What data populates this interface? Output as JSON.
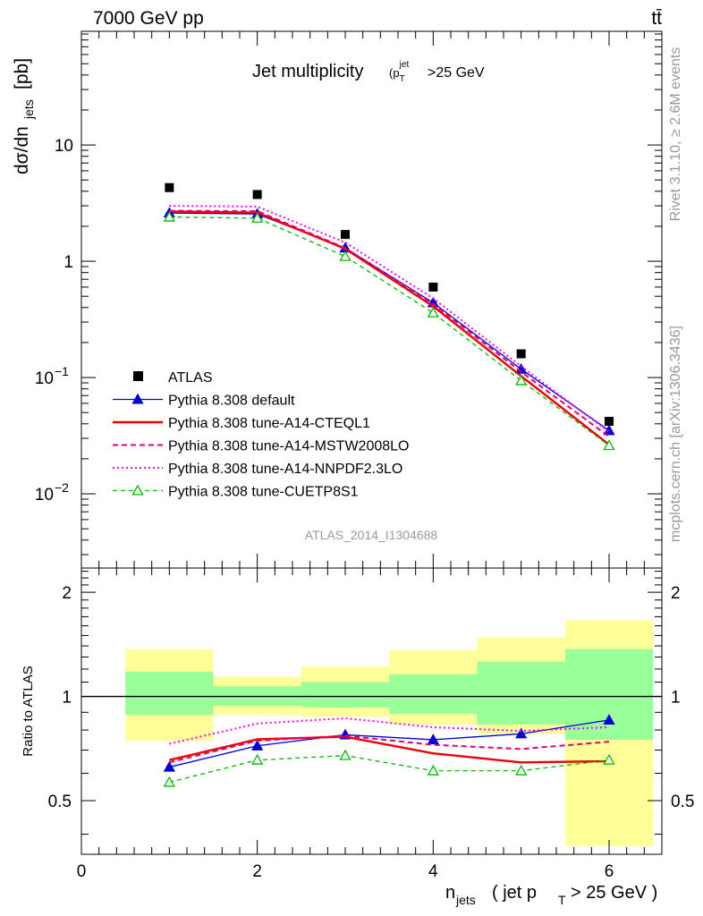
{
  "header": {
    "energy": "7000 GeV pp",
    "process": "tt̄",
    "rivet": "Rivet 3.1.10, ≥ 2.6M events",
    "mcplots": "mcplots.cern.ch [arXiv:1306.3436]",
    "analysis": "ATLAS_2014_I1304688"
  },
  "colors": {
    "atlas": "#000000",
    "default": "#0000dd",
    "cteql1": "#ee0000",
    "mstw": "#e5006e",
    "nnpdf": "#ff00ff",
    "cuetp8s1": "#00bb00",
    "band_inner": "#99ff99",
    "band_outer": "#ffff99"
  },
  "chart_data": {
    "type": "line",
    "title": "Jet multiplicity",
    "title_cut": ">25 GeV",
    "ylabel_main": "dσ/dn",
    "ylabel_main_sub": "jets",
    "ylabel_main_unit": "[pb]",
    "ylabel_ratio": "Ratio to ATLAS",
    "xlabel": "n",
    "xlabel_sub": "jets",
    "xlabel_mid": "( jet p",
    "xlabel_mid_sub": "T",
    "xlabel_end": "> 25 GeV )",
    "xlim": [
      0,
      6.6
    ],
    "ylim_main": [
      0.0023,
      95
    ],
    "yscale_main": "log",
    "ylim_ratio": [
      0.35,
      2.35
    ],
    "yscale_ratio": "log",
    "x_ticks": [
      "0",
      "2",
      "4",
      "6"
    ],
    "main_y_ticks": [
      "10",
      "1",
      "10",
      "10"
    ],
    "main_y_ticks_exp": [
      "",
      "",
      "−1",
      "−2"
    ],
    "ratio_y_ticks": [
      "2",
      "1",
      "0.5"
    ],
    "legend_position": "lower-left",
    "x": [
      1,
      2,
      3,
      4,
      5,
      6
    ],
    "bins": [
      [
        0.5,
        1.5
      ],
      [
        1.5,
        2.5
      ],
      [
        2.5,
        3.5
      ],
      [
        3.5,
        4.5
      ],
      [
        4.5,
        5.5
      ],
      [
        5.5,
        6.5
      ]
    ],
    "series": [
      {
        "key": "atlas",
        "name": "ATLAS",
        "values": [
          4.3,
          3.75,
          1.7,
          0.6,
          0.16,
          0.042
        ]
      },
      {
        "key": "default",
        "name": "Pythia 8.308 default",
        "values": [
          2.6,
          2.55,
          1.3,
          0.44,
          0.118,
          0.035
        ]
      },
      {
        "key": "cteql1",
        "name": "Pythia 8.308 tune-A14-CTEQL1",
        "values": [
          2.68,
          2.62,
          1.28,
          0.41,
          0.103,
          0.0265
        ]
      },
      {
        "key": "mstw",
        "name": "Pythia 8.308 tune-A14-MSTW2008LO",
        "values": [
          2.72,
          2.7,
          1.3,
          0.43,
          0.112,
          0.031
        ]
      },
      {
        "key": "nnpdf",
        "name": "Pythia 8.308 tune-A14-NNPDF2.3LO",
        "values": [
          3.0,
          2.95,
          1.45,
          0.48,
          0.125,
          0.034
        ]
      },
      {
        "key": "cuetp8s1",
        "name": "Pythia 8.308 tune-CUETP8S1",
        "values": [
          2.4,
          2.35,
          1.1,
          0.36,
          0.094,
          0.026
        ]
      }
    ],
    "ratios": {
      "default": [
        0.625,
        0.72,
        0.775,
        0.75,
        0.78,
        0.855
      ],
      "cteql1": [
        0.655,
        0.752,
        0.765,
        0.685,
        0.645,
        0.65
      ],
      "mstw": [
        0.645,
        0.745,
        0.77,
        0.725,
        0.705,
        0.74
      ],
      "nnpdf": [
        0.73,
        0.835,
        0.865,
        0.815,
        0.795,
        0.815
      ],
      "cuetp8s1": [
        0.565,
        0.655,
        0.675,
        0.61,
        0.61,
        0.655
      ]
    },
    "band_inner": [
      [
        0.885,
        1.18
      ],
      [
        0.94,
        1.07
      ],
      [
        0.93,
        1.1
      ],
      [
        0.89,
        1.16
      ],
      [
        0.83,
        1.26
      ],
      [
        0.75,
        1.37
      ]
    ],
    "band_outer": [
      [
        0.745,
        1.37
      ],
      [
        0.885,
        1.14
      ],
      [
        0.875,
        1.22
      ],
      [
        0.83,
        1.36
      ],
      [
        0.78,
        1.48
      ],
      [
        0.37,
        1.66
      ]
    ]
  }
}
